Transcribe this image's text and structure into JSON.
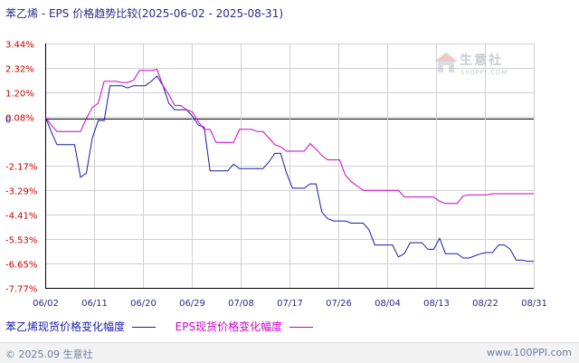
{
  "header": {
    "title": "苯乙烯 - EPS 价格趋势比较(2025-06-02 - 2025-08-31)"
  },
  "footer": {
    "copyright": "© 2025.09 生意社",
    "url": "www.100PPI.com"
  },
  "watermark": {
    "brand": "生意社",
    "url": "100PPI.COM"
  },
  "colors": {
    "series1": "#1a1aa8",
    "series2": "#cc00cc",
    "grid": "#d0d0d0",
    "axis": "#000000",
    "tick_text": "#cc0000",
    "axis_text": "#2a2a8a"
  },
  "chart_data": {
    "type": "line",
    "title": "苯乙烯 - EPS 价格趋势比较(2025-06-02 - 2025-08-31)",
    "xlabel": "",
    "ylabel": "",
    "x_ticks": [
      "06/02",
      "06/11",
      "06/20",
      "06/29",
      "07/08",
      "07/17",
      "07/26",
      "08/04",
      "08/13",
      "08/22",
      "08/31"
    ],
    "y_ticks": [
      "3.44%",
      "2.32%",
      "1.20%",
      "0.08%",
      "0",
      "-2.17%",
      "-3.29%",
      "-4.41%",
      "-5.53%",
      "-6.65%",
      "-7.77%"
    ],
    "y_tick_values": [
      3.44,
      2.32,
      1.2,
      0.08,
      0,
      -2.17,
      -3.29,
      -4.41,
      -5.53,
      -6.65,
      -7.77
    ],
    "ylim": [
      -7.77,
      3.44
    ],
    "grid": true,
    "legend_position": "bottom-left",
    "series": [
      {
        "name": "苯乙烯现货价格变化幅度",
        "color": "#1a1aa8",
        "points": [
          [
            0,
            0.08
          ],
          [
            1,
            -0.6
          ],
          [
            2,
            -1.2
          ],
          [
            3,
            -1.2
          ],
          [
            4,
            -1.2
          ],
          [
            5,
            -1.2
          ],
          [
            6,
            -2.7
          ],
          [
            7,
            -2.5
          ],
          [
            8,
            -0.9
          ],
          [
            9,
            -0.1
          ],
          [
            10,
            -0.1
          ],
          [
            11,
            1.5
          ],
          [
            12,
            1.5
          ],
          [
            13,
            1.5
          ],
          [
            14,
            1.4
          ],
          [
            15,
            1.5
          ],
          [
            16,
            1.5
          ],
          [
            17,
            1.5
          ],
          [
            18,
            1.7
          ],
          [
            19,
            1.95
          ],
          [
            20,
            1.5
          ],
          [
            21,
            0.7
          ],
          [
            22,
            0.4
          ],
          [
            23,
            0.4
          ],
          [
            24,
            0.4
          ],
          [
            25,
            0.1
          ],
          [
            26,
            -0.3
          ],
          [
            27,
            -0.4
          ],
          [
            28,
            -2.4
          ],
          [
            29,
            -2.4
          ],
          [
            30,
            -2.4
          ],
          [
            31,
            -2.4
          ],
          [
            32,
            -2.1
          ],
          [
            33,
            -2.3
          ],
          [
            34,
            -2.3
          ],
          [
            35,
            -2.3
          ],
          [
            36,
            -2.3
          ],
          [
            37,
            -2.3
          ],
          [
            38,
            -2.0
          ],
          [
            39,
            -1.6
          ],
          [
            40,
            -1.6
          ],
          [
            41,
            -2.5
          ],
          [
            42,
            -3.2
          ],
          [
            43,
            -3.2
          ],
          [
            44,
            -3.2
          ],
          [
            45,
            -3.0
          ],
          [
            46,
            -3.0
          ],
          [
            47,
            -4.3
          ],
          [
            48,
            -4.6
          ],
          [
            49,
            -4.7
          ],
          [
            50,
            -4.7
          ],
          [
            51,
            -4.7
          ],
          [
            52,
            -4.8
          ],
          [
            53,
            -4.8
          ],
          [
            54,
            -4.8
          ],
          [
            55,
            -5.1
          ],
          [
            56,
            -5.8
          ],
          [
            57,
            -5.8
          ],
          [
            58,
            -5.8
          ],
          [
            59,
            -5.8
          ],
          [
            60,
            -6.35
          ],
          [
            61,
            -6.2
          ],
          [
            62,
            -5.7
          ],
          [
            63,
            -5.7
          ],
          [
            64,
            -5.7
          ],
          [
            65,
            -6.0
          ],
          [
            66,
            -6.0
          ],
          [
            67,
            -5.5
          ],
          [
            68,
            -6.2
          ],
          [
            69,
            -6.2
          ],
          [
            70,
            -6.2
          ],
          [
            71,
            -6.4
          ],
          [
            72,
            -6.4
          ],
          [
            73,
            -6.3
          ],
          [
            74,
            -6.2
          ],
          [
            75,
            -6.15
          ],
          [
            76,
            -6.15
          ],
          [
            77,
            -5.8
          ],
          [
            78,
            -5.8
          ],
          [
            79,
            -6.0
          ],
          [
            80,
            -6.5
          ],
          [
            81,
            -6.5
          ],
          [
            82,
            -6.55
          ],
          [
            83,
            -6.55
          ]
        ]
      },
      {
        "name": "EPS现货价格变化幅度",
        "color": "#cc00cc",
        "points": [
          [
            0,
            0.08
          ],
          [
            1,
            -0.3
          ],
          [
            2,
            -0.6
          ],
          [
            3,
            -0.6
          ],
          [
            4,
            -0.6
          ],
          [
            5,
            -0.6
          ],
          [
            6,
            -0.6
          ],
          [
            7,
            0.0
          ],
          [
            8,
            0.5
          ],
          [
            9,
            0.7
          ],
          [
            10,
            1.7
          ],
          [
            11,
            1.7
          ],
          [
            12,
            1.7
          ],
          [
            13,
            1.65
          ],
          [
            14,
            1.65
          ],
          [
            15,
            1.75
          ],
          [
            16,
            2.2
          ],
          [
            17,
            2.2
          ],
          [
            18,
            2.2
          ],
          [
            19,
            2.25
          ],
          [
            20,
            1.5
          ],
          [
            21,
            1.1
          ],
          [
            22,
            0.6
          ],
          [
            23,
            0.6
          ],
          [
            24,
            0.4
          ],
          [
            25,
            0.3
          ],
          [
            26,
            -0.15
          ],
          [
            27,
            -0.5
          ],
          [
            28,
            -0.5
          ],
          [
            29,
            -1.1
          ],
          [
            30,
            -1.1
          ],
          [
            31,
            -1.1
          ],
          [
            32,
            -1.1
          ],
          [
            33,
            -0.5
          ],
          [
            34,
            -0.5
          ],
          [
            35,
            -0.5
          ],
          [
            36,
            -0.6
          ],
          [
            37,
            -0.6
          ],
          [
            38,
            -0.9
          ],
          [
            39,
            -1.2
          ],
          [
            40,
            -1.3
          ],
          [
            41,
            -1.5
          ],
          [
            42,
            -1.5
          ],
          [
            43,
            -1.5
          ],
          [
            44,
            -1.5
          ],
          [
            45,
            -1.15
          ],
          [
            46,
            -1.4
          ],
          [
            47,
            -1.7
          ],
          [
            48,
            -1.9
          ],
          [
            49,
            -1.9
          ],
          [
            50,
            -1.9
          ],
          [
            51,
            -2.6
          ],
          [
            52,
            -2.9
          ],
          [
            53,
            -3.1
          ],
          [
            54,
            -3.3
          ],
          [
            55,
            -3.3
          ],
          [
            56,
            -3.3
          ],
          [
            57,
            -3.3
          ],
          [
            58,
            -3.3
          ],
          [
            59,
            -3.3
          ],
          [
            60,
            -3.3
          ],
          [
            61,
            -3.6
          ],
          [
            62,
            -3.6
          ],
          [
            63,
            -3.6
          ],
          [
            64,
            -3.6
          ],
          [
            65,
            -3.6
          ],
          [
            66,
            -3.6
          ],
          [
            67,
            -3.8
          ],
          [
            68,
            -3.9
          ],
          [
            69,
            -3.9
          ],
          [
            70,
            -3.9
          ],
          [
            71,
            -3.55
          ],
          [
            72,
            -3.5
          ],
          [
            73,
            -3.5
          ],
          [
            74,
            -3.5
          ],
          [
            75,
            -3.5
          ],
          [
            76,
            -3.45
          ],
          [
            77,
            -3.45
          ],
          [
            78,
            -3.45
          ],
          [
            79,
            -3.45
          ],
          [
            80,
            -3.45
          ],
          [
            81,
            -3.45
          ],
          [
            82,
            -3.45
          ],
          [
            83,
            -3.45
          ]
        ]
      }
    ]
  }
}
